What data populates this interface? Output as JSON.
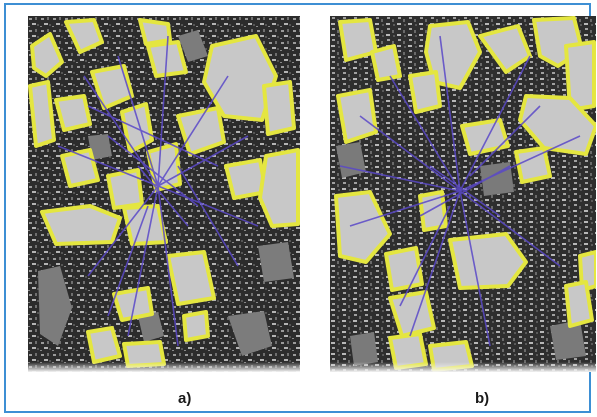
{
  "figure": {
    "panels": [
      {
        "caption": "a)"
      },
      {
        "caption": "b)"
      }
    ]
  },
  "colors": {
    "frame": "#3d8fd4",
    "matrix": "#2c2c2c",
    "aggregate_fill": "#c9c9c9",
    "aggregate_outline": "#e4e640",
    "crack_lines": "#5a48c8"
  }
}
